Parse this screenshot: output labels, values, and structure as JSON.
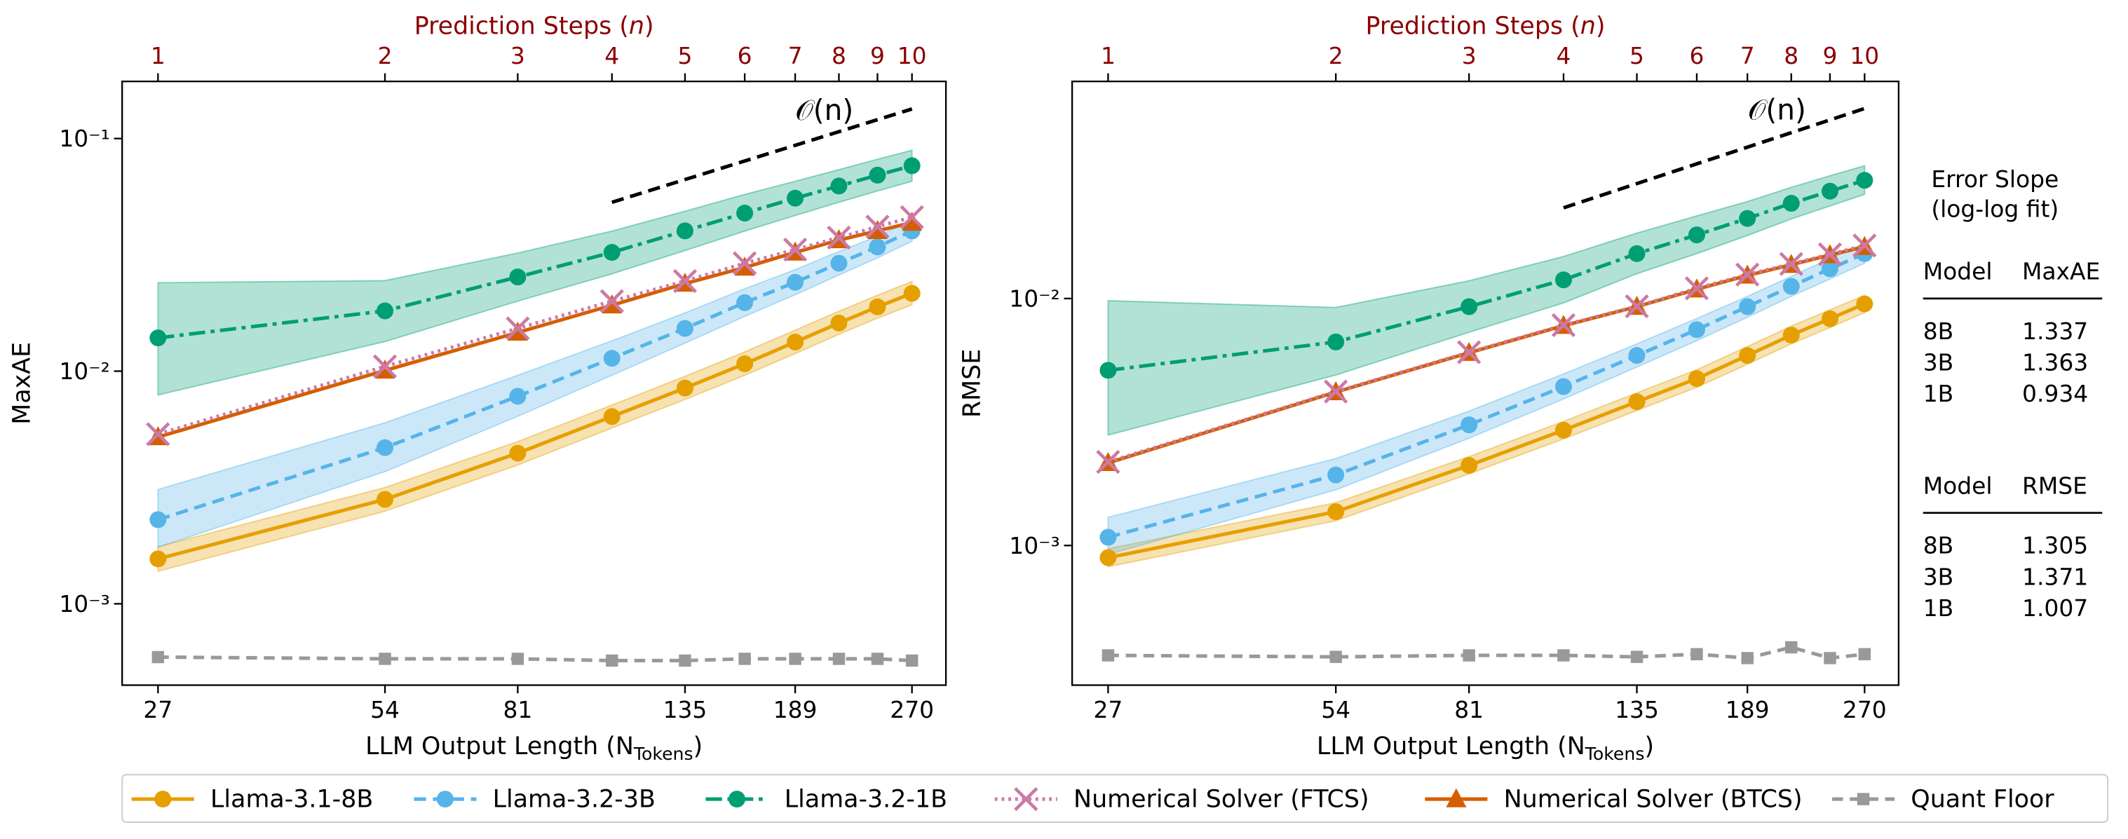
{
  "chart_data": [
    {
      "type": "line",
      "y_label": "MaxAE",
      "x_label_parts": [
        "LLM Output Length (",
        "N",
        "Tokens",
        ")"
      ],
      "x2_label_parts": [
        "Prediction Steps (",
        "n",
        ")"
      ],
      "log_x": true,
      "log_y": true,
      "xlim": [
        24.2,
        299.5
      ],
      "ylim": [
        0.000447,
        0.176
      ],
      "xticks": [
        27,
        54,
        81,
        135,
        189,
        270
      ],
      "x2ticks": [
        {
          "value": 27,
          "label": "1"
        },
        {
          "value": 54,
          "label": "2"
        },
        {
          "value": 81,
          "label": "3"
        },
        {
          "value": 108,
          "label": "4"
        },
        {
          "value": 135,
          "label": "5"
        },
        {
          "value": 162,
          "label": "6"
        },
        {
          "value": 189,
          "label": "7"
        },
        {
          "value": 216,
          "label": "8"
        },
        {
          "value": 243,
          "label": "9"
        },
        {
          "value": 270,
          "label": "10"
        }
      ],
      "yticks": [
        {
          "value": 0.1,
          "label": "10⁻¹"
        },
        {
          "value": 0.01,
          "label": "10⁻²"
        },
        {
          "value": 0.001,
          "label": "10⁻³"
        }
      ],
      "x": [
        27,
        54,
        81,
        108,
        135,
        162,
        189,
        216,
        243,
        270
      ],
      "reference_line": {
        "label": "𝒪(n)",
        "x": [
          108,
          270
        ],
        "values": [
          0.0532,
          0.134
        ]
      },
      "series": [
        {
          "name": "Quant Floor",
          "color": "#999999",
          "dash": "8,5",
          "marker": "square",
          "values": [
            0.00059,
            0.00058,
            0.00058,
            0.00057,
            0.00057,
            0.00058,
            0.00058,
            0.00058,
            0.00058,
            0.00057
          ]
        },
        {
          "name": "Llama-3.1-8B",
          "color": "#E69F00",
          "dash": "",
          "marker": "circle",
          "values": [
            0.00156,
            0.00281,
            0.00444,
            0.00638,
            0.00846,
            0.01076,
            0.01334,
            0.0161,
            0.0189,
            0.0216
          ],
          "band_lower": [
            0.00138,
            0.0025,
            0.00395,
            0.0057,
            0.00755,
            0.0096,
            0.0119,
            0.0144,
            0.0169,
            0.0193
          ],
          "band_upper": [
            0.00176,
            0.00316,
            0.00498,
            0.00715,
            0.0095,
            0.0121,
            0.015,
            0.0181,
            0.0212,
            0.0243
          ]
        },
        {
          "name": "Llama-3.2-3B",
          "color": "#56B4E9",
          "dash": "9,5",
          "marker": "circle",
          "values": [
            0.0023,
            0.00469,
            0.0078,
            0.01136,
            0.01527,
            0.0197,
            0.0241,
            0.0291,
            0.0342,
            0.0401
          ],
          "band_lower": [
            0.00175,
            0.0037,
            0.0064,
            0.0096,
            0.0132,
            0.0172,
            0.0213,
            0.0259,
            0.0307,
            0.0362
          ],
          "band_upper": [
            0.0031,
            0.006,
            0.0096,
            0.0135,
            0.0178,
            0.0226,
            0.0273,
            0.0327,
            0.038,
            0.0445
          ]
        },
        {
          "name": "Llama-3.2-1B",
          "color": "#009E73",
          "dash": "12,4,3,4",
          "marker": "circle",
          "values": [
            0.0139,
            0.01816,
            0.0254,
            0.0324,
            0.0401,
            0.0478,
            0.0554,
            0.0625,
            0.0696,
            0.0764
          ],
          "band_lower": [
            0.0079,
            0.0134,
            0.02,
            0.0262,
            0.033,
            0.04,
            0.0467,
            0.0532,
            0.0595,
            0.0655
          ],
          "band_upper": [
            0.024,
            0.0245,
            0.0322,
            0.04,
            0.0487,
            0.0575,
            0.0655,
            0.0735,
            0.0815,
            0.089
          ]
        },
        {
          "name": "Numerical Solver (BTCS)",
          "color": "#D55E00",
          "dash": "",
          "marker": "triangle",
          "values": [
            0.00521,
            0.01007,
            0.01466,
            0.0192,
            0.0238,
            0.0279,
            0.0324,
            0.0366,
            0.0401,
            0.0435
          ]
        },
        {
          "name": "Numerical Solver (FTCS)",
          "color": "#CC79A7",
          "dash": "2,3",
          "marker": "x",
          "values": [
            0.00536,
            0.01048,
            0.01527,
            0.02,
            0.0244,
            0.0291,
            0.0333,
            0.0375,
            0.0418,
            0.0459
          ]
        }
      ]
    },
    {
      "type": "line",
      "y_label": "RMSE",
      "x_label_parts": [
        "LLM Output Length (",
        "N",
        "Tokens",
        ")"
      ],
      "x2_label_parts": [
        "Prediction Steps (",
        "n",
        ")"
      ],
      "log_x": true,
      "log_y": true,
      "xlim": [
        24.2,
        299.5
      ],
      "ylim": [
        0.000272,
        0.0757
      ],
      "xticks": [
        27,
        54,
        81,
        135,
        189,
        270
      ],
      "x2ticks": [
        {
          "value": 27,
          "label": "1"
        },
        {
          "value": 54,
          "label": "2"
        },
        {
          "value": 81,
          "label": "3"
        },
        {
          "value": 108,
          "label": "4"
        },
        {
          "value": 135,
          "label": "5"
        },
        {
          "value": 162,
          "label": "6"
        },
        {
          "value": 189,
          "label": "7"
        },
        {
          "value": 216,
          "label": "8"
        },
        {
          "value": 243,
          "label": "9"
        },
        {
          "value": 270,
          "label": "10"
        }
      ],
      "yticks": [
        {
          "value": 0.01,
          "label": "10⁻²"
        },
        {
          "value": 0.001,
          "label": "10⁻³"
        }
      ],
      "x": [
        27,
        54,
        81,
        108,
        135,
        162,
        189,
        216,
        243,
        270
      ],
      "reference_line": {
        "label": "𝒪(n)",
        "x": [
          108,
          270
        ],
        "values": [
          0.0233,
          0.0588
        ]
      },
      "series": [
        {
          "name": "Quant Floor",
          "color": "#999999",
          "dash": "8,5",
          "marker": "square",
          "values": [
            0.000359,
            0.000354,
            0.000359,
            0.000359,
            0.000354,
            0.000363,
            0.00035,
            0.000387,
            0.00035,
            0.000363
          ]
        },
        {
          "name": "Llama-3.1-8B",
          "color": "#E69F00",
          "dash": "",
          "marker": "circle",
          "values": [
            0.000893,
            0.00137,
            0.00211,
            0.00293,
            0.00382,
            0.00474,
            0.00588,
            0.00711,
            0.00828,
            0.00951
          ],
          "band_lower": [
            0.00082,
            0.00126,
            0.00195,
            0.0027,
            0.00352,
            0.00437,
            0.00542,
            0.00655,
            0.00763,
            0.00876
          ],
          "band_upper": [
            0.00097,
            0.00149,
            0.00229,
            0.00318,
            0.00415,
            0.00515,
            0.00639,
            0.00773,
            0.009,
            0.0103
          ]
        },
        {
          "name": "Llama-3.2-3B",
          "color": "#56B4E9",
          "dash": "9,5",
          "marker": "circle",
          "values": [
            0.00108,
            0.00193,
            0.00308,
            0.0044,
            0.00588,
            0.00748,
            0.00927,
            0.0112,
            0.0132,
            0.0152
          ],
          "band_lower": [
            0.00092,
            0.00168,
            0.00272,
            0.00392,
            0.00528,
            0.00675,
            0.0084,
            0.0102,
            0.012,
            0.0139
          ],
          "band_upper": [
            0.0013,
            0.00225,
            0.0035,
            0.00495,
            0.00655,
            0.0083,
            0.0102,
            0.0123,
            0.0145,
            0.0167
          ]
        },
        {
          "name": "Llama-3.2-1B",
          "color": "#009E73",
          "dash": "12,4,3,4",
          "marker": "circle",
          "values": [
            0.00512,
            0.00667,
            0.00927,
            0.0119,
            0.0152,
            0.0181,
            0.0211,
            0.0243,
            0.0272,
            0.0301
          ],
          "band_lower": [
            0.0028,
            0.0049,
            0.0073,
            0.0096,
            0.0126,
            0.0152,
            0.018,
            0.021,
            0.0237,
            0.0264
          ],
          "band_upper": [
            0.0098,
            0.0092,
            0.0118,
            0.0148,
            0.0184,
            0.0216,
            0.0247,
            0.0282,
            0.0314,
            0.0345
          ]
        },
        {
          "name": "Numerical Solver (BTCS)",
          "color": "#D55E00",
          "dash": "",
          "marker": "triangle",
          "values": [
            0.00216,
            0.00418,
            0.00603,
            0.00776,
            0.00927,
            0.0109,
            0.0124,
            0.0137,
            0.015,
            0.0162
          ]
        },
        {
          "name": "Numerical Solver (FTCS)",
          "color": "#CC79A7",
          "dash": "2,3",
          "marker": "x",
          "values": [
            0.00218,
            0.0042,
            0.00606,
            0.0078,
            0.0093,
            0.011,
            0.0125,
            0.0138,
            0.0151,
            0.0164
          ]
        }
      ]
    }
  ],
  "legend_order": [
    1,
    2,
    3,
    5,
    4,
    0
  ],
  "slope_table": {
    "title": [
      "Error Slope",
      "(log-log fit)"
    ],
    "tables": [
      {
        "header": [
          "Model",
          "MaxAE"
        ],
        "rows": [
          [
            "8B",
            1.337
          ],
          [
            "3B",
            1.363
          ],
          [
            "1B",
            0.934
          ]
        ]
      },
      {
        "header": [
          "Model",
          "RMSE"
        ],
        "rows": [
          [
            "8B",
            1.305
          ],
          [
            "3B",
            1.371
          ],
          [
            "1B",
            1.007
          ]
        ]
      }
    ]
  }
}
